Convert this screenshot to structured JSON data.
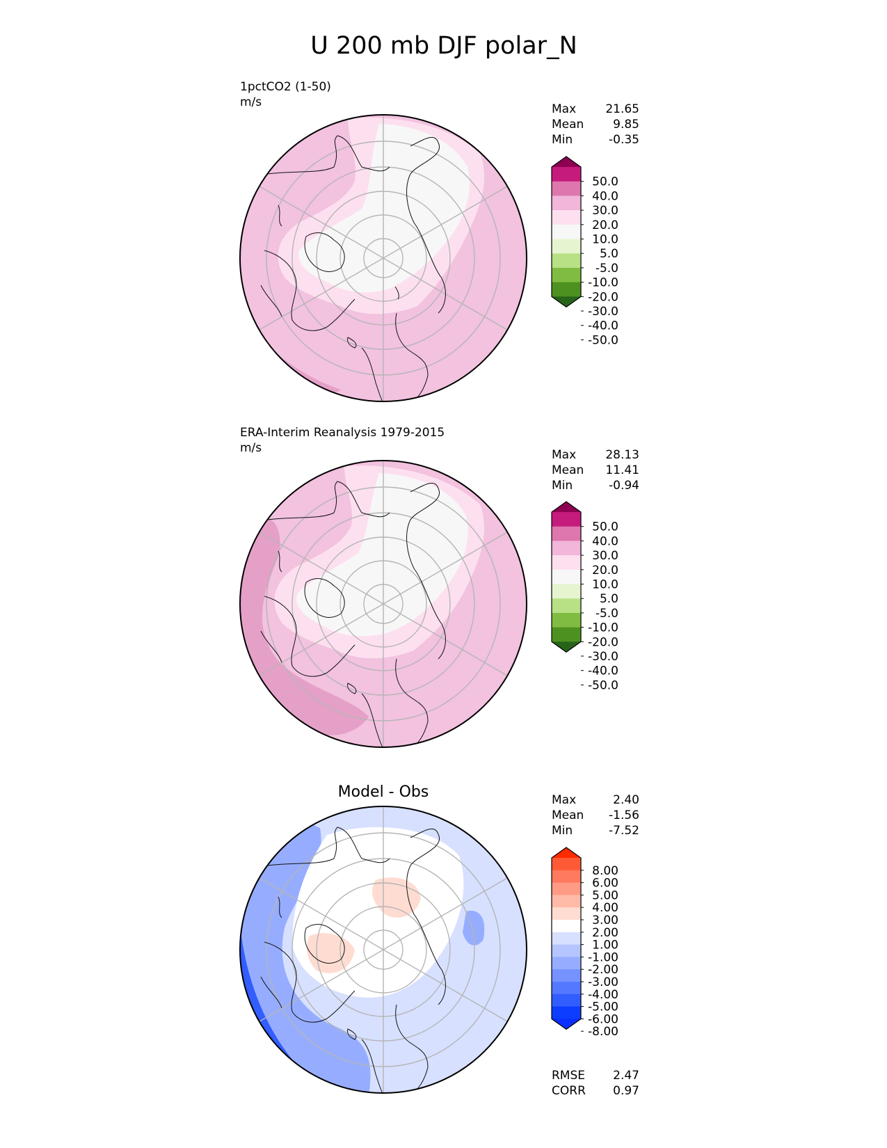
{
  "title": "U 200 mb DJF polar_N",
  "panels": [
    {
      "id": "model",
      "name_line": "1pctCO2 (1-50)",
      "units": "m/s",
      "center_title": "",
      "stats": [
        {
          "label": "Max",
          "value": "21.65"
        },
        {
          "label": "Mean",
          "value": "9.85"
        },
        {
          "label": "Min",
          "value": "-0.35"
        }
      ],
      "colorbar": {
        "ticks": [
          "50.0",
          "40.0",
          "30.0",
          "20.0",
          "10.0",
          "5.0",
          "-5.0",
          "-10.0",
          "-20.0",
          "-30.0",
          "-40.0",
          "-50.0"
        ],
        "colors": [
          "#8e0152",
          "#c51b7d",
          "#de77ae",
          "#f1b6da",
          "#fde0ef",
          "#f7f7f7",
          "#e6f5d0",
          "#b8e186",
          "#7fbc41",
          "#4d9221",
          "#276419"
        ]
      },
      "extra_stats": []
    },
    {
      "id": "obs",
      "name_line": "ERA-Interim Reanalysis 1979-2015",
      "units": "m/s",
      "center_title": "",
      "stats": [
        {
          "label": "Max",
          "value": "28.13"
        },
        {
          "label": "Mean",
          "value": "11.41"
        },
        {
          "label": "Min",
          "value": "-0.94"
        }
      ],
      "colorbar": {
        "ticks": [
          "50.0",
          "40.0",
          "30.0",
          "20.0",
          "10.0",
          "5.0",
          "-5.0",
          "-10.0",
          "-20.0",
          "-30.0",
          "-40.0",
          "-50.0"
        ],
        "colors": [
          "#8e0152",
          "#c51b7d",
          "#de77ae",
          "#f1b6da",
          "#fde0ef",
          "#f7f7f7",
          "#e6f5d0",
          "#b8e186",
          "#7fbc41",
          "#4d9221",
          "#276419"
        ]
      },
      "extra_stats": []
    },
    {
      "id": "diff",
      "name_line": "",
      "units": "",
      "center_title": "Model - Obs",
      "stats": [
        {
          "label": "Max",
          "value": "2.40"
        },
        {
          "label": "Mean",
          "value": "-1.56"
        },
        {
          "label": "Min",
          "value": "-7.52"
        }
      ],
      "colorbar": {
        "ticks": [
          "8.00",
          "6.00",
          "5.00",
          "4.00",
          "3.00",
          "2.00",
          "1.00",
          "-1.00",
          "-2.00",
          "-3.00",
          "-4.00",
          "-5.00",
          "-6.00",
          "-8.00"
        ],
        "colors": [
          "#ff2b00",
          "#ff5a36",
          "#ff7a5e",
          "#ff9b85",
          "#ffbaa8",
          "#ffdcd2",
          "#ffffff",
          "#d7e0ff",
          "#b5c5ff",
          "#96adff",
          "#7592ff",
          "#5478ff",
          "#325dff",
          "#0d3dff",
          "#0a2fff"
        ]
      },
      "extra_stats": [
        {
          "label": "RMSE",
          "value": "2.47"
        },
        {
          "label": "CORR",
          "value": "0.97"
        }
      ]
    }
  ],
  "chart_data": [
    {
      "type": "heatmap",
      "title": "1pctCO2 (1-50)",
      "units": "m/s",
      "projection": "north polar stereographic",
      "levels": [
        -50,
        -40,
        -30,
        -20,
        -10,
        -5,
        5,
        10,
        20,
        30,
        40,
        50
      ],
      "stats": {
        "max": 21.65,
        "mean": 9.85,
        "min": -0.35
      }
    },
    {
      "type": "heatmap",
      "title": "ERA-Interim Reanalysis 1979-2015",
      "units": "m/s",
      "projection": "north polar stereographic",
      "levels": [
        -50,
        -40,
        -30,
        -20,
        -10,
        -5,
        5,
        10,
        20,
        30,
        40,
        50
      ],
      "stats": {
        "max": 28.13,
        "mean": 11.41,
        "min": -0.94
      }
    },
    {
      "type": "heatmap",
      "title": "Model - Obs",
      "projection": "north polar stereographic",
      "levels": [
        -8,
        -6,
        -5,
        -4,
        -3,
        -2,
        -1,
        1,
        2,
        3,
        4,
        5,
        6,
        8
      ],
      "stats": {
        "max": 2.4,
        "mean": -1.56,
        "min": -7.52,
        "rmse": 2.47,
        "corr": 0.97
      }
    }
  ]
}
